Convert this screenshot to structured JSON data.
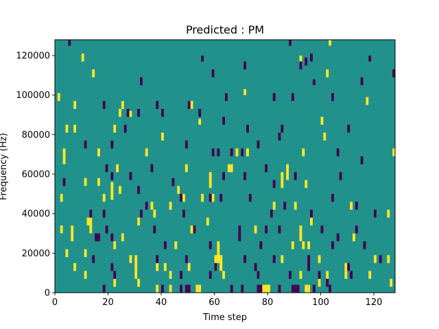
{
  "chart_data": {
    "type": "heatmap",
    "title": "Predicted : PM",
    "xlabel": "Time step",
    "ylabel": "Frequency (Hz)",
    "xlim": [
      0,
      128
    ],
    "ylim": [
      0,
      128000
    ],
    "n_time_steps": 128,
    "n_freq_bins": 128,
    "freq_bin_hz": 1000,
    "x_ticks": [
      0,
      20,
      40,
      60,
      80,
      100,
      120
    ],
    "x_tick_labels": [
      "0",
      "20",
      "40",
      "60",
      "80",
      "100",
      "120"
    ],
    "y_ticks": [
      0,
      20000,
      40000,
      60000,
      80000,
      100000,
      120000
    ],
    "y_tick_labels": [
      "0",
      "20000",
      "40000",
      "60000",
      "80000",
      "100000",
      "120000"
    ],
    "grid": false,
    "legend": "none",
    "colors": {
      "background": "#21918c",
      "high": "#fde725",
      "low": "#440154"
    },
    "value_levels": {
      "background": 0,
      "high": 1,
      "low": -1
    },
    "cells_note_units": "t = time step index, f = frequency in kHz (bin start), len = number of consecutive bins",
    "high_cells": [
      {
        "t": 10,
        "f": 117,
        "len": 4
      },
      {
        "t": 103,
        "f": 125,
        "len": 3
      },
      {
        "t": 92,
        "f": 117,
        "len": 3
      },
      {
        "t": 102,
        "f": 109,
        "len": 4
      },
      {
        "t": 14,
        "f": 109,
        "len": 4
      },
      {
        "t": 71,
        "f": 100,
        "len": 3
      },
      {
        "t": 117,
        "f": 95,
        "len": 4
      },
      {
        "t": 1,
        "f": 97,
        "len": 4
      },
      {
        "t": 7,
        "f": 93,
        "len": 4
      },
      {
        "t": 25,
        "f": 93,
        "len": 4
      },
      {
        "t": 24,
        "f": 89,
        "len": 4
      },
      {
        "t": 51,
        "f": 93,
        "len": 4
      },
      {
        "t": 28,
        "f": 89,
        "len": 3
      },
      {
        "t": 54,
        "f": 85,
        "len": 3
      },
      {
        "t": 4,
        "f": 81,
        "len": 4
      },
      {
        "t": 7,
        "f": 81,
        "len": 4
      },
      {
        "t": 22,
        "f": 81,
        "len": 4
      },
      {
        "t": 40,
        "f": 77,
        "len": 4
      },
      {
        "t": 101,
        "f": 77,
        "len": 4
      },
      {
        "t": 3,
        "f": 69,
        "len": 4
      },
      {
        "t": 16,
        "f": 69,
        "len": 4
      },
      {
        "t": 34,
        "f": 69,
        "len": 4
      },
      {
        "t": 59,
        "f": 69,
        "len": 4
      },
      {
        "t": 68,
        "f": 69,
        "len": 4
      },
      {
        "t": 3,
        "f": 65,
        "len": 4
      },
      {
        "t": 23,
        "f": 61,
        "len": 4
      },
      {
        "t": 49,
        "f": 61,
        "len": 4
      },
      {
        "t": 66,
        "f": 61,
        "len": 4
      },
      {
        "t": 72,
        "f": 69,
        "len": 4
      },
      {
        "t": 93,
        "f": 69,
        "len": 4
      },
      {
        "t": 127,
        "f": 69,
        "len": 4
      },
      {
        "t": 11,
        "f": 54,
        "len": 4
      },
      {
        "t": 16,
        "f": 54,
        "len": 4
      },
      {
        "t": 21,
        "f": 47,
        "len": 9
      },
      {
        "t": 58,
        "f": 53,
        "len": 8
      },
      {
        "t": 85,
        "f": 53,
        "len": 8
      },
      {
        "t": 87,
        "f": 57,
        "len": 8
      },
      {
        "t": 94,
        "f": 53,
        "len": 4
      },
      {
        "t": 24,
        "f": 50,
        "len": 4
      },
      {
        "t": 46,
        "f": 50,
        "len": 4
      },
      {
        "t": 55,
        "f": 46,
        "len": 4
      },
      {
        "t": 59,
        "f": 46,
        "len": 4
      },
      {
        "t": 2,
        "f": 46,
        "len": 4
      },
      {
        "t": 18,
        "f": 46,
        "len": 4
      },
      {
        "t": 36,
        "f": 42,
        "len": 4
      },
      {
        "t": 82,
        "f": 42,
        "len": 4
      },
      {
        "t": 90,
        "f": 42,
        "len": 4
      },
      {
        "t": 111,
        "f": 42,
        "len": 4
      },
      {
        "t": 13,
        "f": 30,
        "len": 8
      },
      {
        "t": 12,
        "f": 34,
        "len": 4
      },
      {
        "t": 31,
        "f": 34,
        "len": 4
      },
      {
        "t": 37,
        "f": 38,
        "len": 4
      },
      {
        "t": 57,
        "f": 34,
        "len": 4
      },
      {
        "t": 125,
        "f": 38,
        "len": 4
      },
      {
        "t": 6,
        "f": 26,
        "len": 8
      },
      {
        "t": 2,
        "f": 30,
        "len": 4
      },
      {
        "t": 89,
        "f": 22,
        "len": 4
      },
      {
        "t": 92,
        "f": 26,
        "len": 8
      },
      {
        "t": 93,
        "f": 22,
        "len": 4
      },
      {
        "t": 95,
        "f": 22,
        "len": 4
      },
      {
        "t": 112,
        "f": 26,
        "len": 4
      },
      {
        "t": 4,
        "f": 18,
        "len": 4
      },
      {
        "t": 11,
        "f": 18,
        "len": 4
      },
      {
        "t": 22,
        "f": 22,
        "len": 4
      },
      {
        "t": 45,
        "f": 22,
        "len": 4
      },
      {
        "t": 28,
        "f": 15,
        "len": 4
      },
      {
        "t": 30,
        "f": 15,
        "len": 4
      },
      {
        "t": 60,
        "f": 11,
        "len": 8
      },
      {
        "t": 61,
        "f": 15,
        "len": 11
      },
      {
        "t": 62,
        "f": 11,
        "len": 8
      },
      {
        "t": 85,
        "f": 15,
        "len": 4
      },
      {
        "t": 99,
        "f": 15,
        "len": 4
      },
      {
        "t": 7,
        "f": 11,
        "len": 4
      },
      {
        "t": 30,
        "f": 11,
        "len": 4
      },
      {
        "t": 38,
        "f": 11,
        "len": 4
      },
      {
        "t": 50,
        "f": 11,
        "len": 4
      },
      {
        "t": 109,
        "f": 11,
        "len": 4
      },
      {
        "t": 120,
        "f": 15,
        "len": 4
      },
      {
        "t": 125,
        "f": 15,
        "len": 4
      },
      {
        "t": 11,
        "f": 7,
        "len": 4
      },
      {
        "t": 30,
        "f": 7,
        "len": 4
      },
      {
        "t": 43,
        "f": 7,
        "len": 4
      },
      {
        "t": 63,
        "f": 7,
        "len": 4
      },
      {
        "t": 76,
        "f": 7,
        "len": 4
      },
      {
        "t": 92,
        "f": 7,
        "len": 4
      },
      {
        "t": 102,
        "f": 7,
        "len": 4
      },
      {
        "t": 109,
        "f": 7,
        "len": 4
      },
      {
        "t": 118,
        "f": 7,
        "len": 4
      },
      {
        "t": 22,
        "f": 3,
        "len": 4
      },
      {
        "t": 31,
        "f": 3,
        "len": 4
      },
      {
        "t": 38,
        "f": 0,
        "len": 4
      },
      {
        "t": 43,
        "f": 0,
        "len": 4
      },
      {
        "t": 53,
        "f": 0,
        "len": 4
      },
      {
        "t": 54,
        "f": 0,
        "len": 4
      },
      {
        "t": 78,
        "f": 0,
        "len": 4
      },
      {
        "t": 79,
        "f": 0,
        "len": 4
      },
      {
        "t": 80,
        "f": 0,
        "len": 4
      },
      {
        "t": 94,
        "f": 0,
        "len": 4
      },
      {
        "t": 95,
        "f": 0,
        "len": 4
      },
      {
        "t": 99,
        "f": 3,
        "len": 4
      },
      {
        "t": 126,
        "f": 3,
        "len": 4
      },
      {
        "t": 41,
        "f": 11,
        "len": 4
      },
      {
        "t": 75,
        "f": 30,
        "len": 4
      },
      {
        "t": 51,
        "f": 30,
        "len": 4
      },
      {
        "t": 96,
        "f": 34,
        "len": 4
      },
      {
        "t": 25,
        "f": 26,
        "len": 4
      },
      {
        "t": 65,
        "f": 61,
        "len": 4
      },
      {
        "t": 43,
        "f": 42,
        "len": 4
      },
      {
        "t": 48,
        "f": 46,
        "len": 4
      },
      {
        "t": 100,
        "f": 85,
        "len": 4
      }
    ],
    "low_cells": [
      {
        "t": 5,
        "f": 125,
        "len": 3
      },
      {
        "t": 55,
        "f": 117,
        "len": 3
      },
      {
        "t": 88,
        "f": 125,
        "len": 3
      },
      {
        "t": 92,
        "f": 113,
        "len": 4
      },
      {
        "t": 118,
        "f": 117,
        "len": 3
      },
      {
        "t": 96,
        "f": 117,
        "len": 4
      },
      {
        "t": 71,
        "f": 113,
        "len": 4
      },
      {
        "t": 59,
        "f": 109,
        "len": 4
      },
      {
        "t": 128,
        "f": 109,
        "len": 4
      },
      {
        "t": 32,
        "f": 105,
        "len": 4
      },
      {
        "t": 97,
        "f": 105,
        "len": 3
      },
      {
        "t": 115,
        "f": 105,
        "len": 4
      },
      {
        "t": 64,
        "f": 97,
        "len": 4
      },
      {
        "t": 82,
        "f": 97,
        "len": 4
      },
      {
        "t": 89,
        "f": 97,
        "len": 4
      },
      {
        "t": 104,
        "f": 97,
        "len": 4
      },
      {
        "t": 18,
        "f": 93,
        "len": 4
      },
      {
        "t": 38,
        "f": 93,
        "len": 4
      },
      {
        "t": 50,
        "f": 93,
        "len": 4
      },
      {
        "t": 27,
        "f": 89,
        "len": 4
      },
      {
        "t": 31,
        "f": 89,
        "len": 4
      },
      {
        "t": 40,
        "f": 89,
        "len": 4
      },
      {
        "t": 54,
        "f": 89,
        "len": 4
      },
      {
        "t": 63,
        "f": 85,
        "len": 4
      },
      {
        "t": 26,
        "f": 81,
        "len": 4
      },
      {
        "t": 85,
        "f": 81,
        "len": 4
      },
      {
        "t": 110,
        "f": 81,
        "len": 4
      },
      {
        "t": 72,
        "f": 81,
        "len": 4
      },
      {
        "t": 84,
        "f": 77,
        "len": 4
      },
      {
        "t": 11,
        "f": 73,
        "len": 4
      },
      {
        "t": 21,
        "f": 73,
        "len": 4
      },
      {
        "t": 49,
        "f": 73,
        "len": 4
      },
      {
        "t": 59,
        "f": 69,
        "len": 4
      },
      {
        "t": 61,
        "f": 69,
        "len": 4
      },
      {
        "t": 66,
        "f": 69,
        "len": 4
      },
      {
        "t": 70,
        "f": 69,
        "len": 4
      },
      {
        "t": 76,
        "f": 73,
        "len": 4
      },
      {
        "t": 106,
        "f": 69,
        "len": 4
      },
      {
        "t": 115,
        "f": 65,
        "len": 4
      },
      {
        "t": 19,
        "f": 61,
        "len": 4
      },
      {
        "t": 36,
        "f": 61,
        "len": 4
      },
      {
        "t": 79,
        "f": 61,
        "len": 4
      },
      {
        "t": 107,
        "f": 57,
        "len": 4
      },
      {
        "t": 3,
        "f": 54,
        "len": 4
      },
      {
        "t": 63,
        "f": 57,
        "len": 4
      },
      {
        "t": 71,
        "f": 57,
        "len": 4
      },
      {
        "t": 21,
        "f": 57,
        "len": 4
      },
      {
        "t": 44,
        "f": 54,
        "len": 4
      },
      {
        "t": 82,
        "f": 53,
        "len": 4
      },
      {
        "t": 90,
        "f": 57,
        "len": 4
      },
      {
        "t": 31,
        "f": 50,
        "len": 4
      },
      {
        "t": 58,
        "f": 46,
        "len": 4
      },
      {
        "t": 62,
        "f": 46,
        "len": 4
      },
      {
        "t": 86,
        "f": 42,
        "len": 4
      },
      {
        "t": 104,
        "f": 46,
        "len": 4
      },
      {
        "t": 47,
        "f": 46,
        "len": 4
      },
      {
        "t": 73,
        "f": 46,
        "len": 4
      },
      {
        "t": 34,
        "f": 42,
        "len": 4
      },
      {
        "t": 113,
        "f": 42,
        "len": 4
      },
      {
        "t": 32,
        "f": 38,
        "len": 4
      },
      {
        "t": 13,
        "f": 38,
        "len": 4
      },
      {
        "t": 18,
        "f": 38,
        "len": 4
      },
      {
        "t": 48,
        "f": 38,
        "len": 4
      },
      {
        "t": 81,
        "f": 38,
        "len": 4
      },
      {
        "t": 96,
        "f": 38,
        "len": 4
      },
      {
        "t": 120,
        "f": 38,
        "len": 4
      },
      {
        "t": 113,
        "f": 30,
        "len": 4
      },
      {
        "t": 19,
        "f": 30,
        "len": 4
      },
      {
        "t": 37,
        "f": 30,
        "len": 4
      },
      {
        "t": 52,
        "f": 30,
        "len": 4
      },
      {
        "t": 69,
        "f": 30,
        "len": 4
      },
      {
        "t": 79,
        "f": 30,
        "len": 4
      },
      {
        "t": 84,
        "f": 30,
        "len": 4
      },
      {
        "t": 100,
        "f": 30,
        "len": 4
      },
      {
        "t": 15,
        "f": 26,
        "len": 4
      },
      {
        "t": 16,
        "f": 26,
        "len": 4
      },
      {
        "t": 21,
        "f": 26,
        "len": 4
      },
      {
        "t": 69,
        "f": 26,
        "len": 4
      },
      {
        "t": 106,
        "f": 26,
        "len": 4
      },
      {
        "t": 41,
        "f": 22,
        "len": 4
      },
      {
        "t": 58,
        "f": 22,
        "len": 4
      },
      {
        "t": 77,
        "f": 22,
        "len": 4
      },
      {
        "t": 104,
        "f": 22,
        "len": 4
      },
      {
        "t": 116,
        "f": 22,
        "len": 4
      },
      {
        "t": 14,
        "f": 15,
        "len": 4
      },
      {
        "t": 38,
        "f": 15,
        "len": 4
      },
      {
        "t": 49,
        "f": 15,
        "len": 4
      },
      {
        "t": 71,
        "f": 15,
        "len": 4
      },
      {
        "t": 82,
        "f": 15,
        "len": 4
      },
      {
        "t": 95,
        "f": 15,
        "len": 4
      },
      {
        "t": 122,
        "f": 15,
        "len": 4
      },
      {
        "t": 21,
        "f": 11,
        "len": 4
      },
      {
        "t": 60,
        "f": 11,
        "len": 4
      },
      {
        "t": 75,
        "f": 11,
        "len": 4
      },
      {
        "t": 95,
        "f": 11,
        "len": 4
      },
      {
        "t": 110,
        "f": 11,
        "len": 4
      },
      {
        "t": 111,
        "f": 7,
        "len": 4
      },
      {
        "t": 22,
        "f": 7,
        "len": 4
      },
      {
        "t": 47,
        "f": 7,
        "len": 4
      },
      {
        "t": 58,
        "f": 7,
        "len": 4
      },
      {
        "t": 76,
        "f": 7,
        "len": 4
      },
      {
        "t": 88,
        "f": 7,
        "len": 4
      },
      {
        "t": 99,
        "f": 7,
        "len": 4
      },
      {
        "t": 102,
        "f": 3,
        "len": 4
      },
      {
        "t": 18,
        "f": 0,
        "len": 4
      },
      {
        "t": 40,
        "f": 0,
        "len": 4
      },
      {
        "t": 47,
        "f": 0,
        "len": 4
      },
      {
        "t": 49,
        "f": 0,
        "len": 4
      },
      {
        "t": 50,
        "f": 0,
        "len": 4
      },
      {
        "t": 66,
        "f": 0,
        "len": 4
      },
      {
        "t": 70,
        "f": 0,
        "len": 4
      },
      {
        "t": 76,
        "f": 0,
        "len": 4
      },
      {
        "t": 77,
        "f": 0,
        "len": 4
      },
      {
        "t": 84,
        "f": 0,
        "len": 4
      },
      {
        "t": 89,
        "f": 0,
        "len": 4
      },
      {
        "t": 90,
        "f": 0,
        "len": 4
      },
      {
        "t": 91,
        "f": 0,
        "len": 4
      },
      {
        "t": 97,
        "f": 0,
        "len": 4
      },
      {
        "t": 103,
        "f": 0,
        "len": 4
      },
      {
        "t": 28,
        "f": 57,
        "len": 4
      },
      {
        "t": 94,
        "f": 115,
        "len": 4
      }
    ]
  }
}
